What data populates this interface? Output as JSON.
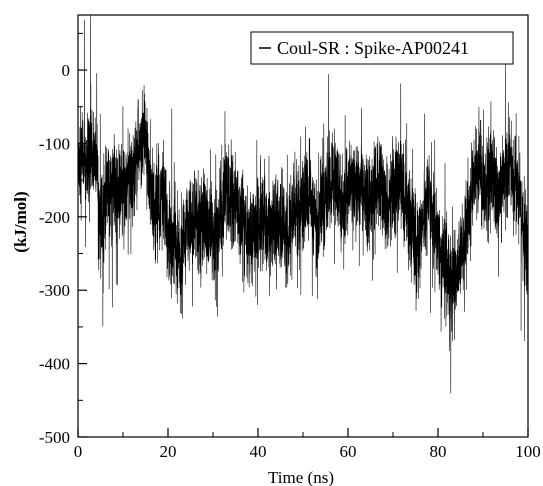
{
  "chart_data": {
    "type": "line",
    "title": "",
    "xlabel": "Time (ns)",
    "ylabel": "(kJ/mol)",
    "xlim": [
      0,
      100
    ],
    "ylim": [
      -500,
      75
    ],
    "x_ticks": [
      0,
      20,
      40,
      60,
      80,
      100
    ],
    "y_ticks": [
      0,
      -100,
      -200,
      -300,
      -400,
      -500
    ],
    "x_tick_labels": [
      "0",
      "20",
      "40",
      "60",
      "80",
      "100"
    ],
    "y_tick_labels": [
      "0",
      "-100",
      "-200",
      "-300",
      "-400",
      "-500"
    ],
    "grid": false,
    "legend_position": "top-right",
    "series": [
      {
        "name": "Coul-SR : Spike-AP00241",
        "color": "#000000",
        "x": [
          0,
          1,
          2,
          3,
          4,
          5,
          6,
          7,
          8,
          9,
          10,
          11,
          12,
          13,
          14,
          15,
          16,
          17,
          18,
          19,
          20,
          21,
          22,
          23,
          24,
          25,
          26,
          27,
          28,
          29,
          30,
          31,
          32,
          33,
          34,
          35,
          36,
          37,
          38,
          39,
          40,
          41,
          42,
          43,
          44,
          45,
          46,
          47,
          48,
          49,
          50,
          51,
          52,
          53,
          54,
          55,
          56,
          57,
          58,
          59,
          60,
          61,
          62,
          63,
          64,
          65,
          66,
          67,
          68,
          69,
          70,
          71,
          72,
          73,
          74,
          75,
          76,
          77,
          78,
          79,
          80,
          81,
          82,
          83,
          84,
          85,
          86,
          87,
          88,
          89,
          90,
          91,
          92,
          93,
          94,
          95,
          96,
          97,
          98,
          99,
          100
        ],
        "y": [
          -130,
          -115,
          -140,
          -110,
          -125,
          -210,
          -180,
          -160,
          -150,
          -175,
          -160,
          -145,
          -150,
          -120,
          -100,
          -90,
          -170,
          -190,
          -180,
          -175,
          -215,
          -230,
          -245,
          -260,
          -220,
          -210,
          -205,
          -230,
          -200,
          -215,
          -225,
          -210,
          -195,
          -160,
          -180,
          -170,
          -200,
          -205,
          -230,
          -215,
          -210,
          -195,
          -205,
          -220,
          -215,
          -210,
          -230,
          -200,
          -195,
          -185,
          -180,
          -170,
          -190,
          -210,
          -195,
          -170,
          -160,
          -150,
          -175,
          -190,
          -165,
          -150,
          -165,
          -145,
          -180,
          -190,
          -160,
          -140,
          -175,
          -185,
          -160,
          -150,
          -155,
          -185,
          -220,
          -240,
          -210,
          -200,
          -170,
          -195,
          -230,
          -260,
          -270,
          -290,
          -300,
          -250,
          -230,
          -180,
          -145,
          -130,
          -150,
          -160,
          -140,
          -175,
          -160,
          -135,
          -130,
          -150,
          -160,
          -230,
          -250
        ]
      }
    ]
  }
}
